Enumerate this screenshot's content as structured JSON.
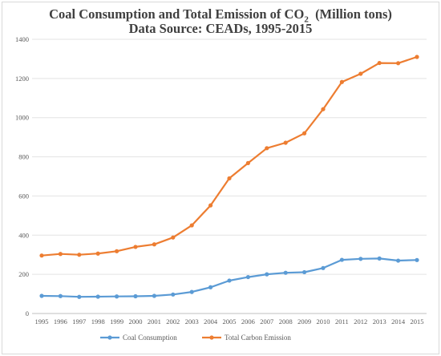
{
  "chart_data": {
    "type": "line",
    "title_main": "Coal Consumption and Total Emission of CO",
    "title_subscript": "2",
    "title_unit": "(Million tons)",
    "subtitle": "Data Source: CEADs, 1995-2015",
    "xlabel": "",
    "ylabel": "",
    "ylim": [
      0,
      1400
    ],
    "y_ticks": [
      0,
      200,
      400,
      600,
      800,
      1000,
      1200,
      1400
    ],
    "grid": "horizontal",
    "legend_position": "bottom",
    "categories": [
      "1995",
      "1996",
      "1997",
      "1998",
      "1999",
      "2000",
      "2001",
      "2002",
      "2003",
      "2004",
      "2005",
      "2006",
      "2007",
      "2008",
      "2009",
      "2010",
      "2011",
      "2012",
      "2013",
      "2014",
      "2015"
    ],
    "series": [
      {
        "name": "Coal Consumption",
        "color": "#5b9bd5",
        "values": [
          90,
          89,
          85,
          86,
          87,
          88,
          90,
          97,
          110,
          134,
          168,
          186,
          200,
          208,
          211,
          232,
          274,
          279,
          281,
          270,
          273
        ]
      },
      {
        "name": "Total Carbon Emission",
        "color": "#ed7d31",
        "values": [
          296,
          304,
          300,
          306,
          318,
          340,
          353,
          388,
          450,
          552,
          690,
          768,
          844,
          872,
          920,
          1043,
          1182,
          1224,
          1279,
          1278,
          1310
        ]
      }
    ]
  }
}
